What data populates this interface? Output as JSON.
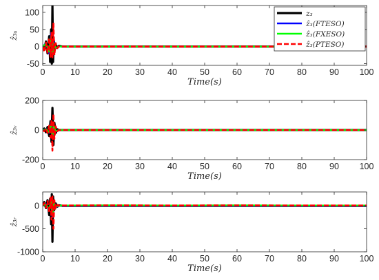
{
  "legend": [
    {
      "label": "z₃",
      "color": "#000000"
    },
    {
      "label": "ẑ₃(FTESO)",
      "color": "#0000ff"
    },
    {
      "label": "ẑ₃(FXESO)",
      "color": "#00ff00"
    },
    {
      "label": "ẑ₃(PTESO)",
      "color": "#ff0000"
    }
  ],
  "chart_data": [
    {
      "type": "line",
      "ylabel": "ẑ₃ᵤ",
      "xlabel": "Time(s)",
      "xlim": [
        0,
        100
      ],
      "ylim": [
        -55,
        120
      ],
      "xticks": [
        0,
        10,
        20,
        30,
        40,
        50,
        60,
        70,
        80,
        90,
        100
      ],
      "yticks": [
        -50,
        0,
        50,
        100
      ],
      "legend_position": "top-right",
      "series": [
        {
          "name": "z₃",
          "color": "#000000",
          "x": [
            0,
            0.5,
            1.0,
            1.5,
            2.0,
            2.3,
            2.6,
            2.8,
            3.0,
            3.2,
            3.4,
            3.7,
            4.0,
            4.5,
            5.0,
            6.0,
            100
          ],
          "y": [
            0,
            -10,
            15,
            -20,
            30,
            -45,
            50,
            -50,
            120,
            -45,
            20,
            -10,
            5,
            -3,
            2,
            0,
            0
          ]
        },
        {
          "name": "ẑ₃(FTESO)",
          "color": "#0000ff",
          "x": [
            0,
            1.0,
            2.0,
            2.6,
            3.0,
            3.4,
            4.0,
            5.0,
            100
          ],
          "y": [
            0,
            10,
            -20,
            40,
            -30,
            15,
            -5,
            0,
            0
          ]
        },
        {
          "name": "ẑ₃(FXESO)",
          "color": "#00ff00",
          "x": [
            0,
            1.0,
            2.0,
            2.6,
            3.0,
            3.4,
            4.0,
            5.0,
            100
          ],
          "y": [
            0,
            8,
            -15,
            30,
            -25,
            10,
            -4,
            0,
            0
          ]
        },
        {
          "name": "ẑ₃(PTESO)",
          "color": "#ff0000",
          "x": [
            0,
            0.5,
            1.0,
            1.5,
            2.0,
            2.4,
            2.7,
            3.0,
            3.3,
            3.6,
            4.0,
            4.5,
            5.0,
            100
          ],
          "y": [
            0,
            -15,
            12,
            -18,
            25,
            -30,
            40,
            -35,
            70,
            -25,
            10,
            -5,
            0,
            0
          ]
        }
      ]
    },
    {
      "type": "line",
      "ylabel": "ẑ₃ᵥ",
      "xlabel": "Time(s)",
      "xlim": [
        0,
        100
      ],
      "ylim": [
        -200,
        200
      ],
      "xticks": [
        0,
        10,
        20,
        30,
        40,
        50,
        60,
        70,
        80,
        90,
        100
      ],
      "yticks": [
        -200,
        0,
        200
      ],
      "series": [
        {
          "name": "z₃",
          "color": "#000000",
          "x": [
            0,
            0.5,
            1.0,
            1.5,
            2.0,
            2.4,
            2.7,
            3.0,
            3.3,
            3.6,
            4.0,
            4.5,
            5.0,
            100
          ],
          "y": [
            0,
            10,
            -15,
            20,
            -40,
            60,
            -80,
            150,
            -100,
            50,
            -20,
            5,
            0,
            0
          ]
        },
        {
          "name": "ẑ₃(FTESO)",
          "color": "#0000ff",
          "x": [
            0,
            1.0,
            2.0,
            2.6,
            3.0,
            3.4,
            4.0,
            5.0,
            100
          ],
          "y": [
            0,
            8,
            -20,
            50,
            -60,
            30,
            -10,
            0,
            0
          ]
        },
        {
          "name": "ẑ₃(FXESO)",
          "color": "#00ff00",
          "x": [
            0,
            1.0,
            2.0,
            2.6,
            3.0,
            3.4,
            4.0,
            5.0,
            100
          ],
          "y": [
            0,
            6,
            -15,
            40,
            -50,
            25,
            -8,
            0,
            0
          ]
        },
        {
          "name": "ẑ₃(PTESO)",
          "color": "#ff0000",
          "x": [
            0,
            0.5,
            1.0,
            1.5,
            2.0,
            2.4,
            2.7,
            3.0,
            3.3,
            3.6,
            4.0,
            4.5,
            5.0,
            100
          ],
          "y": [
            0,
            -8,
            12,
            -20,
            30,
            -50,
            70,
            -140,
            110,
            -60,
            25,
            -8,
            0,
            0
          ]
        }
      ]
    },
    {
      "type": "line",
      "ylabel": "ẑ₃ᵣ",
      "xlabel": "Time(s)",
      "xlim": [
        0,
        100
      ],
      "ylim": [
        -1000,
        300
      ],
      "xticks": [
        0,
        10,
        20,
        30,
        40,
        50,
        60,
        70,
        80,
        90,
        100
      ],
      "yticks": [
        -1000,
        -500,
        0
      ],
      "series": [
        {
          "name": "z₃",
          "color": "#000000",
          "x": [
            0,
            0.5,
            1.0,
            1.5,
            2.0,
            2.3,
            2.6,
            2.8,
            3.0,
            3.2,
            3.5,
            4.0,
            4.5,
            5.0,
            6.0,
            100
          ],
          "y": [
            0,
            80,
            -50,
            120,
            -200,
            150,
            -400,
            250,
            -780,
            200,
            -100,
            50,
            -20,
            10,
            0,
            0
          ]
        },
        {
          "name": "ẑ₃(FTESO)",
          "color": "#0000ff",
          "x": [
            0,
            1.0,
            2.0,
            2.6,
            3.0,
            3.5,
            4.0,
            5.0,
            100
          ],
          "y": [
            0,
            40,
            -100,
            150,
            -250,
            80,
            -30,
            0,
            0
          ]
        },
        {
          "name": "ẑ₃(FXESO)",
          "color": "#00ff00",
          "x": [
            0,
            1.0,
            2.0,
            2.6,
            3.0,
            3.5,
            4.0,
            5.0,
            6,
            20,
            40,
            60,
            80,
            100
          ],
          "y": [
            0,
            30,
            -80,
            120,
            -200,
            60,
            -20,
            0,
            5,
            8,
            5,
            8,
            5,
            5
          ]
        },
        {
          "name": "ẑ₃(PTESO)",
          "color": "#ff0000",
          "x": [
            0,
            0.5,
            1.0,
            1.5,
            2.0,
            2.4,
            2.7,
            3.0,
            3.3,
            3.6,
            4.0,
            4.5,
            5.0,
            6,
            20,
            40,
            60,
            80,
            100
          ],
          "y": [
            0,
            60,
            -40,
            100,
            -150,
            180,
            -300,
            200,
            -500,
            120,
            -60,
            20,
            0,
            5,
            8,
            5,
            8,
            5,
            5
          ]
        }
      ]
    }
  ]
}
